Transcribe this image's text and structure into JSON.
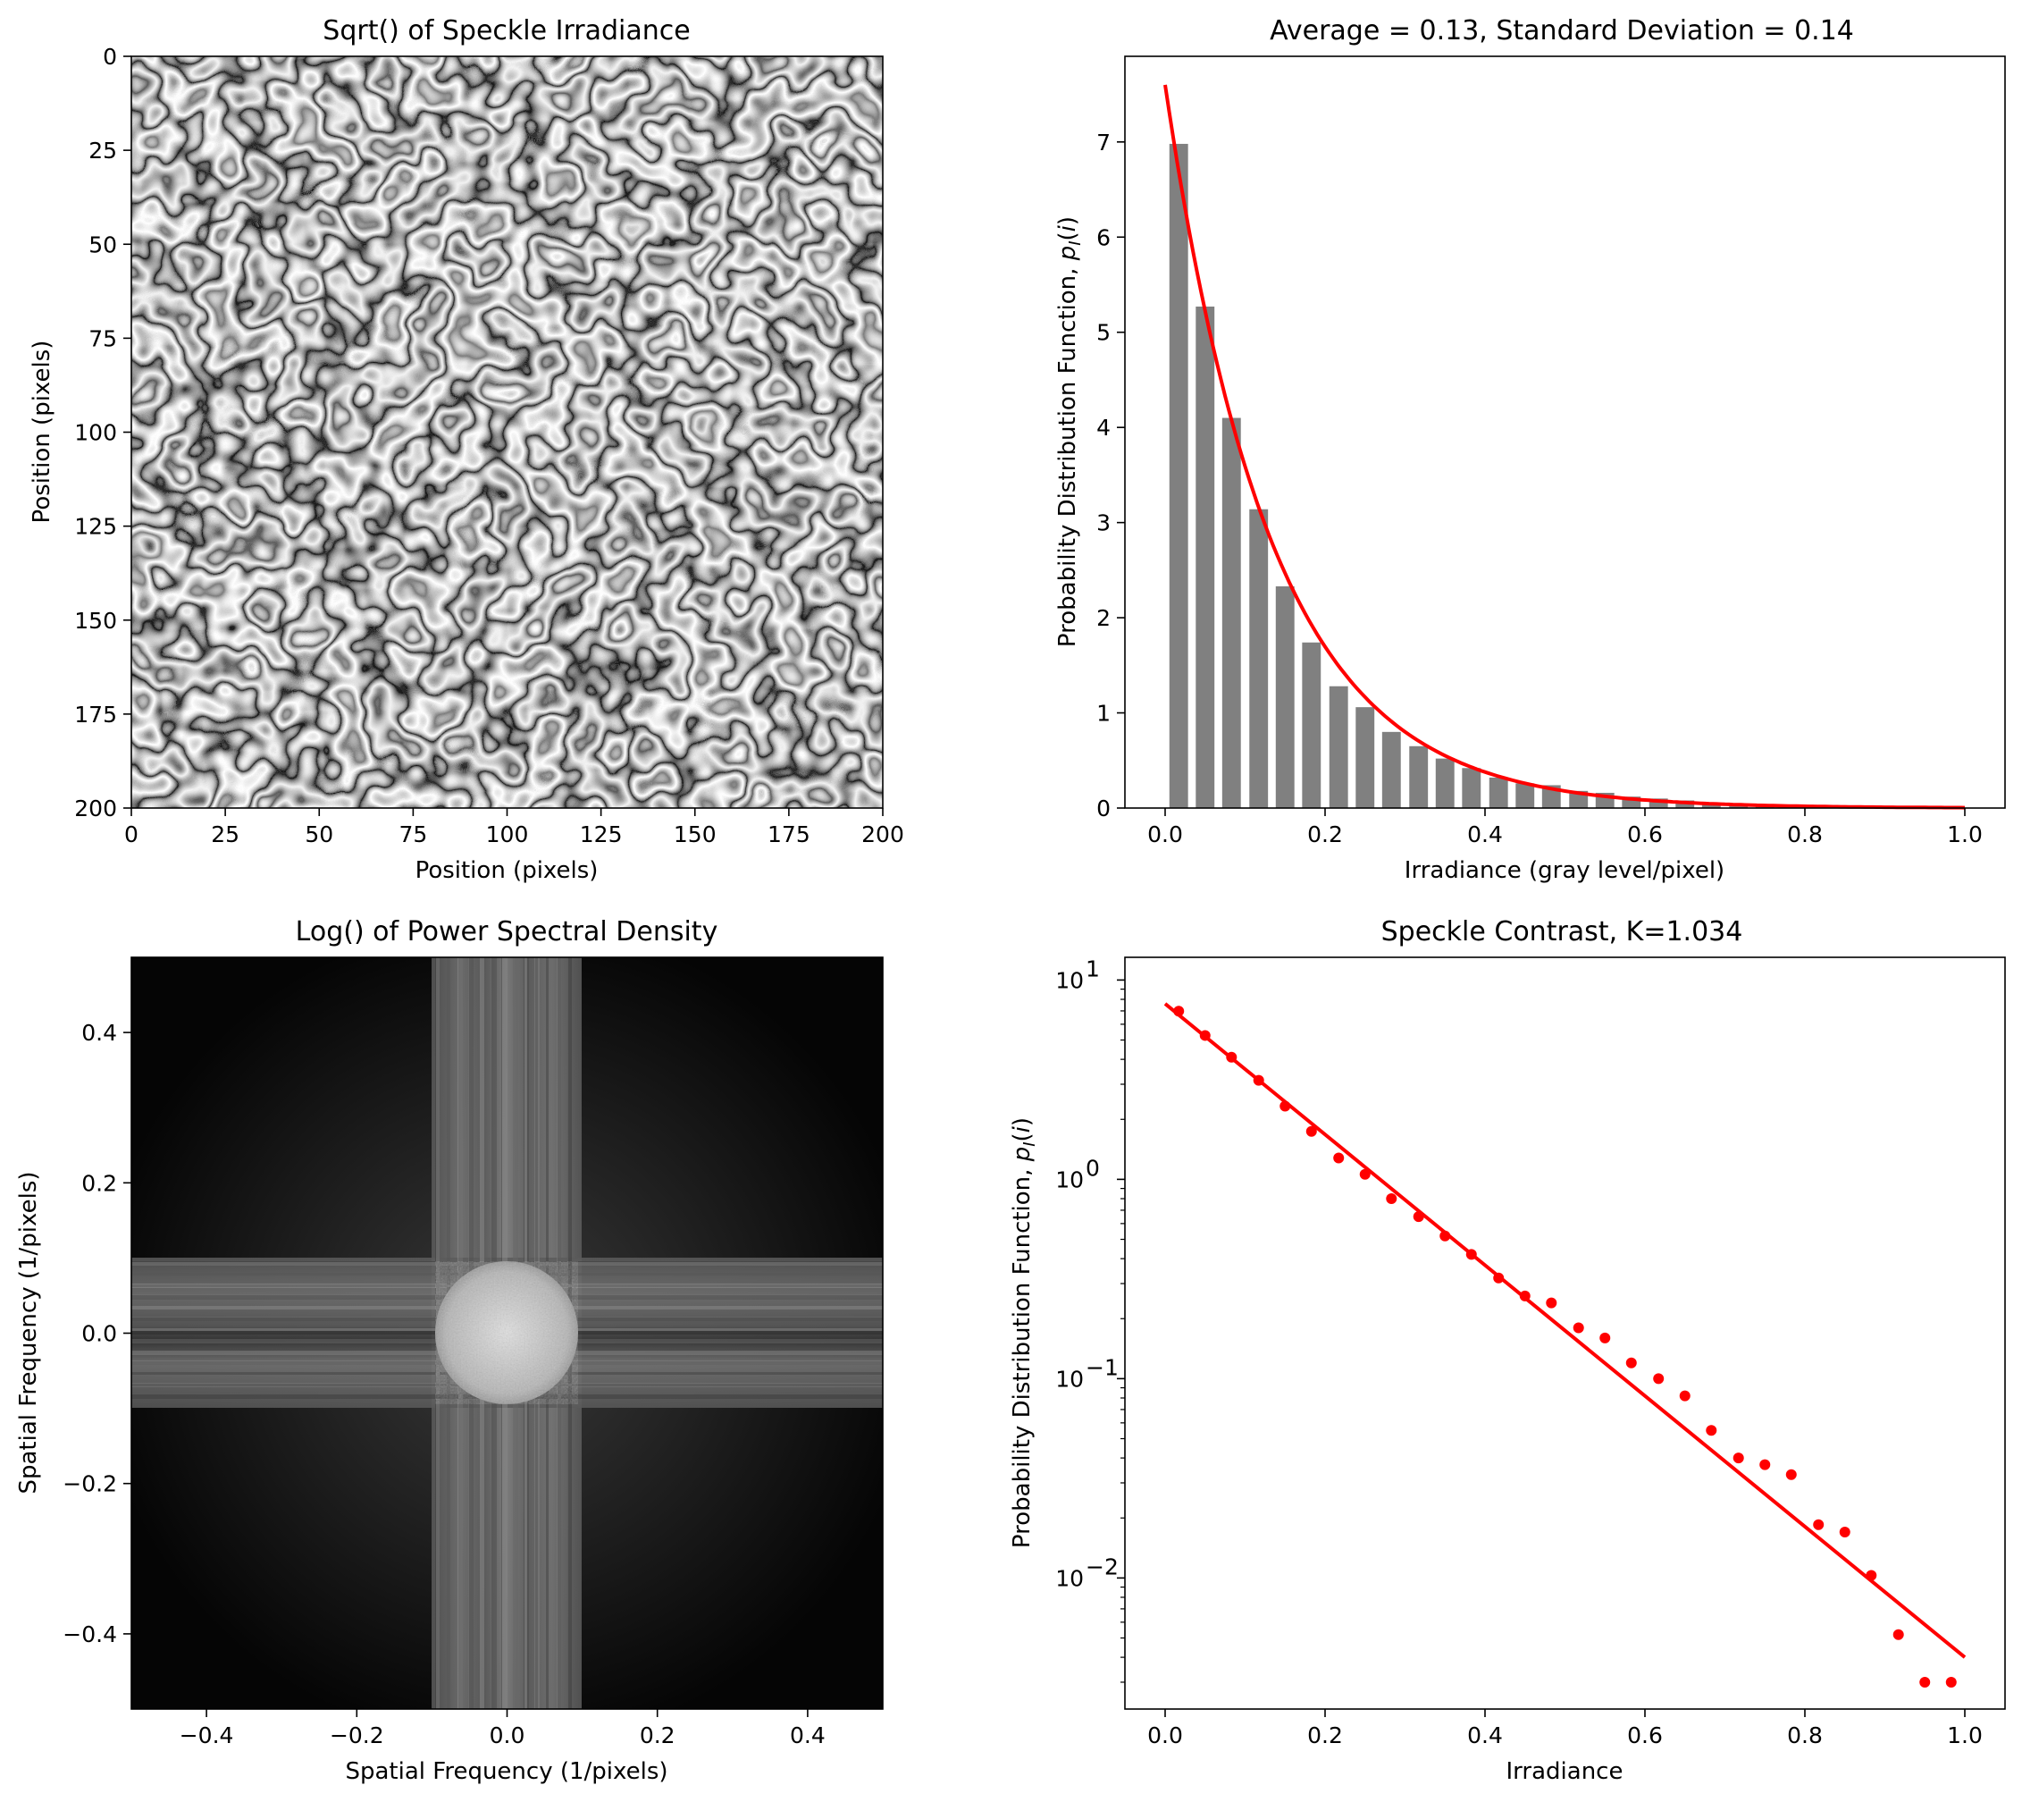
{
  "chart_data": [
    {
      "type": "heatmap",
      "title": "Sqrt() of Speckle Irradiance",
      "xlabel": "Position (pixels)",
      "ylabel": "Position (pixels)",
      "xlim": [
        0,
        200
      ],
      "ylim": [
        200,
        0
      ],
      "xticks": [
        0,
        25,
        50,
        75,
        100,
        125,
        150,
        175,
        200
      ],
      "yticks": [
        0,
        25,
        50,
        75,
        100,
        125,
        150,
        175,
        200
      ],
      "colormap": "gray"
    },
    {
      "type": "bar",
      "title": "Average = 0.13, Standard Deviation = 0.14",
      "xlabel": "Irradiance (gray level/pixel)",
      "ylabel": "Probability Distribution Function, p_I(i)",
      "xlim": [
        0,
        1
      ],
      "ylim": [
        0,
        7.9
      ],
      "xticks": [
        "0.0",
        "0.2",
        "0.4",
        "0.6",
        "0.8",
        "1.0"
      ],
      "yticks": [
        "0",
        "1",
        "2",
        "3",
        "4",
        "5",
        "6",
        "7"
      ],
      "bar_color": "#808080",
      "curve_color": "#ff0000",
      "bars_x": [
        0.017,
        0.05,
        0.083,
        0.117,
        0.15,
        0.183,
        0.217,
        0.25,
        0.283,
        0.317,
        0.35,
        0.383,
        0.417,
        0.45,
        0.483,
        0.517,
        0.55,
        0.583,
        0.617,
        0.65,
        0.683,
        0.717,
        0.75,
        0.783,
        0.817,
        0.85,
        0.883,
        0.917,
        0.95,
        0.983
      ],
      "bars_y": [
        6.98,
        5.27,
        4.1,
        3.14,
        2.33,
        1.74,
        1.28,
        1.06,
        0.8,
        0.65,
        0.52,
        0.42,
        0.32,
        0.26,
        0.24,
        0.18,
        0.16,
        0.12,
        0.1,
        0.08,
        0.055,
        0.04,
        0.037,
        0.033,
        0.019,
        0.017,
        0.01,
        0.005,
        0.003,
        0.003
      ],
      "curve": {
        "amplitude": 7.6,
        "decay": 7.5
      }
    },
    {
      "type": "heatmap",
      "title": "Log() of Power Spectral Density",
      "xlabel": "Spatial Frequency (1/pixels)",
      "ylabel": "Spatial Frequency (1/pixels)",
      "xlim": [
        -0.5,
        0.5
      ],
      "ylim": [
        -0.5,
        0.5
      ],
      "xticks": [
        "−0.4",
        "−0.2",
        "0.0",
        "0.2",
        "0.4"
      ],
      "yticks": [
        "0.4",
        "0.2",
        "0.0",
        "−0.2",
        "−0.4"
      ],
      "colormap": "gray"
    },
    {
      "type": "scatter",
      "title": "Speckle Contrast, K=1.034",
      "xlabel": "Irradiance",
      "ylabel": "Probability Distribution Function, p_I(i)",
      "xscale": "linear",
      "yscale": "log",
      "xlim": [
        -0.05,
        1.05
      ],
      "ylim": [
        0.0022,
        13
      ],
      "xticks": [
        "0.0",
        "0.2",
        "0.4",
        "0.6",
        "0.8",
        "1.0"
      ],
      "yticks": [
        "10",
        "10",
        "10",
        "10"
      ],
      "ytick_exponents": [
        "1",
        "0",
        "−1",
        "−2"
      ],
      "point_color": "#ff0000",
      "points_x": [
        0.017,
        0.05,
        0.083,
        0.117,
        0.15,
        0.183,
        0.217,
        0.25,
        0.283,
        0.317,
        0.35,
        0.383,
        0.417,
        0.45,
        0.483,
        0.517,
        0.55,
        0.583,
        0.617,
        0.65,
        0.683,
        0.717,
        0.75,
        0.783,
        0.817,
        0.85,
        0.883,
        0.917,
        0.95,
        0.983
      ],
      "points_y": [
        6.98,
        5.27,
        4.1,
        3.14,
        2.33,
        1.74,
        1.28,
        1.06,
        0.8,
        0.65,
        0.52,
        0.42,
        0.32,
        0.26,
        0.24,
        0.18,
        0.16,
        0.12,
        0.1,
        0.082,
        0.055,
        0.04,
        0.037,
        0.033,
        0.0185,
        0.017,
        0.0103,
        0.0052,
        0.003,
        0.003
      ],
      "fit_line": {
        "x": [
          0,
          1
        ],
        "y": [
          7.6,
          0.004
        ]
      }
    }
  ]
}
